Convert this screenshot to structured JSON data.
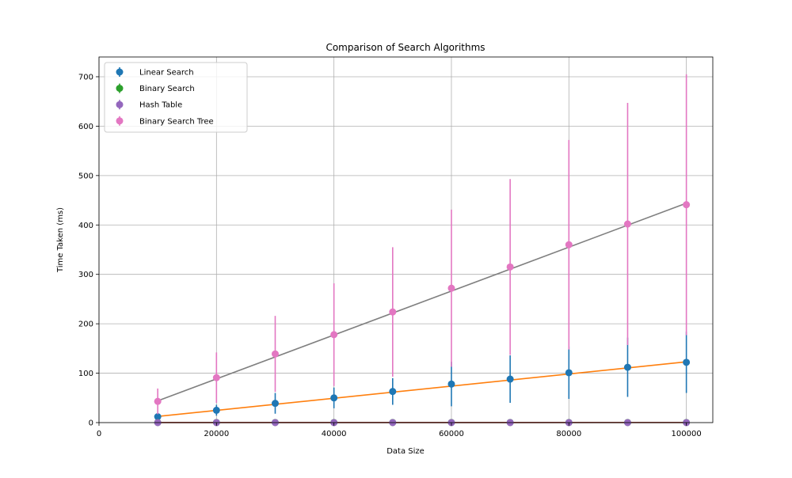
{
  "chart_data": {
    "type": "line",
    "title": "Comparison of Search Algorithms",
    "xlabel": "Data Size",
    "ylabel": "Time Taken (ms)",
    "xlim": [
      0,
      104500
    ],
    "ylim": [
      0,
      740
    ],
    "xticks": [
      0,
      20000,
      40000,
      60000,
      80000,
      100000
    ],
    "yticks": [
      0,
      100,
      200,
      300,
      400,
      500,
      600,
      700
    ],
    "grid": true,
    "legend_position": "top-left",
    "x": [
      10000,
      20000,
      30000,
      40000,
      50000,
      60000,
      70000,
      80000,
      90000,
      100000
    ],
    "series": [
      {
        "name": "Linear Search",
        "color": "#1f77b4",
        "values": [
          12,
          25,
          39,
          50,
          63,
          78,
          88,
          101,
          112,
          122
        ],
        "errors": [
          6,
          11,
          21,
          21,
          27,
          45,
          48,
          53,
          60,
          62
        ]
      },
      {
        "name": "Binary Search",
        "color": "#2ca02c",
        "values": [
          0.2,
          0.2,
          0.2,
          0.2,
          0.2,
          0.2,
          0.2,
          0.2,
          0.2,
          0.2
        ],
        "errors": [
          0.1,
          0.1,
          0.1,
          0.1,
          0.1,
          0.1,
          0.1,
          0.1,
          0.1,
          0.1
        ]
      },
      {
        "name": "Hash Table",
        "color": "#9467bd",
        "values": [
          0.1,
          0.1,
          0.1,
          0.1,
          0.1,
          0.1,
          0.1,
          0.1,
          0.1,
          0.1
        ],
        "errors": [
          0.05,
          0.05,
          0.05,
          0.05,
          0.05,
          0.05,
          0.05,
          0.05,
          0.05,
          0.05
        ]
      },
      {
        "name": "Binary Search Tree",
        "color": "#e377c2",
        "values": [
          43,
          91,
          139,
          178,
          224,
          272,
          315,
          360,
          402,
          441
        ],
        "errors": [
          26,
          51,
          77,
          104,
          131,
          159,
          178,
          212,
          245,
          264
        ]
      }
    ],
    "fit_lines": [
      {
        "color": "#ff7f0e",
        "x": [
          10000,
          100000
        ],
        "y": [
          12.5,
          123
        ]
      },
      {
        "color": "#7f7f7f",
        "x": [
          10000,
          100000
        ],
        "y": [
          44,
          444
        ]
      },
      {
        "color": "#d62728",
        "x": [
          10000,
          100000
        ],
        "y": [
          0.3,
          0.4
        ]
      },
      {
        "color": "#8c564b",
        "x": [
          10000,
          100000
        ],
        "y": [
          0.1,
          0.1
        ]
      }
    ]
  }
}
